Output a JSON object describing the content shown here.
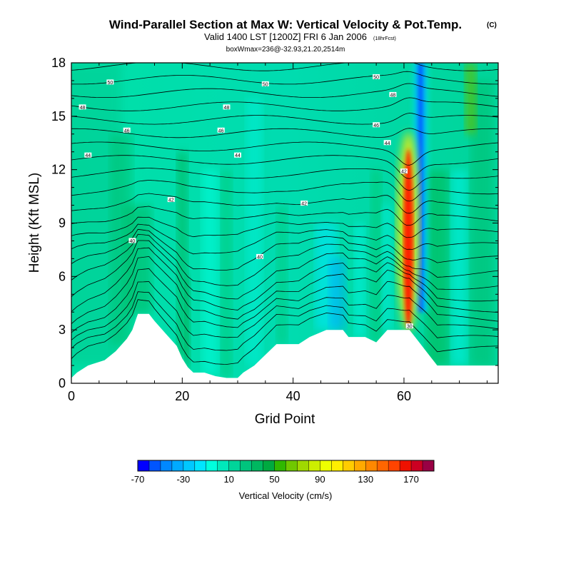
{
  "chart_data": {
    "type": "heatmap",
    "title": "Wind-Parallel Section at Max W: Vertical Velocity & Pot.Temp.",
    "title_tag": "(C)",
    "subtitle": "Valid 1400 LST [1200Z] FRI 6 Jan 2006",
    "subtitle_tag": "(18hrFcst)",
    "subtitle2": "boxWmax=236@-32.93,21.20,2514m",
    "xlabel": "Grid Point",
    "ylabel": "Height (Kft MSL)",
    "xlim": [
      0,
      77
    ],
    "ylim": [
      0,
      18
    ],
    "xticks": [
      "0",
      "20",
      "40",
      "60"
    ],
    "yticks": [
      "0",
      "3",
      "6",
      "9",
      "12",
      "15",
      "18"
    ],
    "terrain_kft": [
      [
        0,
        0.3
      ],
      [
        1,
        0.6
      ],
      [
        3,
        1.0
      ],
      [
        6,
        1.3
      ],
      [
        8,
        1.8
      ],
      [
        10,
        2.5
      ],
      [
        11,
        3.0
      ],
      [
        12,
        3.9
      ],
      [
        14,
        3.9
      ],
      [
        15,
        3.5
      ],
      [
        17,
        2.8
      ],
      [
        19,
        2.1
      ],
      [
        20,
        1.4
      ],
      [
        21,
        0.9
      ],
      [
        22,
        0.6
      ],
      [
        24,
        0.6
      ],
      [
        26,
        0.4
      ],
      [
        28,
        0.3
      ],
      [
        30,
        0.3
      ],
      [
        31,
        0.6
      ],
      [
        33,
        1.0
      ],
      [
        35,
        1.6
      ],
      [
        37,
        2.2
      ],
      [
        39,
        2.2
      ],
      [
        41,
        2.2
      ],
      [
        43,
        2.6
      ],
      [
        46,
        3.0
      ],
      [
        49,
        3.0
      ],
      [
        50,
        2.6
      ],
      [
        53,
        2.6
      ],
      [
        55,
        2.3
      ],
      [
        57,
        3.0
      ],
      [
        59,
        3.0
      ],
      [
        61,
        3.0
      ],
      [
        62,
        2.6
      ],
      [
        63,
        2.2
      ],
      [
        64,
        1.8
      ],
      [
        65,
        1.4
      ],
      [
        66,
        1.0
      ],
      [
        77,
        1.0
      ]
    ],
    "updraft_core": {
      "x": 60.8,
      "base_kft": 3.2,
      "top_kft": 13.8,
      "max_cm_s": 236
    },
    "downdraft_core": {
      "x": 63,
      "base_kft": 4.0,
      "top_kft": 18
    },
    "contour_labels": [
      {
        "text": "50",
        "x": 7,
        "y": 16.9
      },
      {
        "text": "50",
        "x": 35,
        "y": 16.8
      },
      {
        "text": "50",
        "x": 55,
        "y": 17.2
      },
      {
        "text": "48",
        "x": 58,
        "y": 16.2
      },
      {
        "text": "48",
        "x": 2,
        "y": 15.5
      },
      {
        "text": "48",
        "x": 28,
        "y": 15.5
      },
      {
        "text": "46",
        "x": 10,
        "y": 14.2
      },
      {
        "text": "46",
        "x": 27,
        "y": 14.2
      },
      {
        "text": "46",
        "x": 55,
        "y": 14.5
      },
      {
        "text": "44",
        "x": 3,
        "y": 12.8
      },
      {
        "text": "44",
        "x": 30,
        "y": 12.8
      },
      {
        "text": "44",
        "x": 57,
        "y": 13.5
      },
      {
        "text": "42",
        "x": 60,
        "y": 11.9
      },
      {
        "text": "42",
        "x": 18,
        "y": 10.3
      },
      {
        "text": "42",
        "x": 42,
        "y": 10.1
      },
      {
        "text": "40",
        "x": 11,
        "y": 8.0
      },
      {
        "text": "40",
        "x": 34,
        "y": 7.1
      },
      {
        "text": "30",
        "x": 61,
        "y": 3.2
      }
    ],
    "colorbar": {
      "colors": [
        "#0000ff",
        "#0055ff",
        "#0088ff",
        "#00aaff",
        "#00c8ff",
        "#00e5ff",
        "#00ffdd",
        "#00e8bb",
        "#00d49a",
        "#00c47d",
        "#00b860",
        "#00aa40",
        "#30b800",
        "#70c800",
        "#a0d800",
        "#ccee00",
        "#eeff00",
        "#ffee00",
        "#ffcc00",
        "#ffaa00",
        "#ff8800",
        "#ff6600",
        "#ff4400",
        "#ee1100",
        "#cc0022",
        "#990044"
      ],
      "tick_labels": [
        "-70",
        "-30",
        "10",
        "50",
        "90",
        "130",
        "170"
      ],
      "label": "Vertical Velocity (cm/s)"
    }
  }
}
